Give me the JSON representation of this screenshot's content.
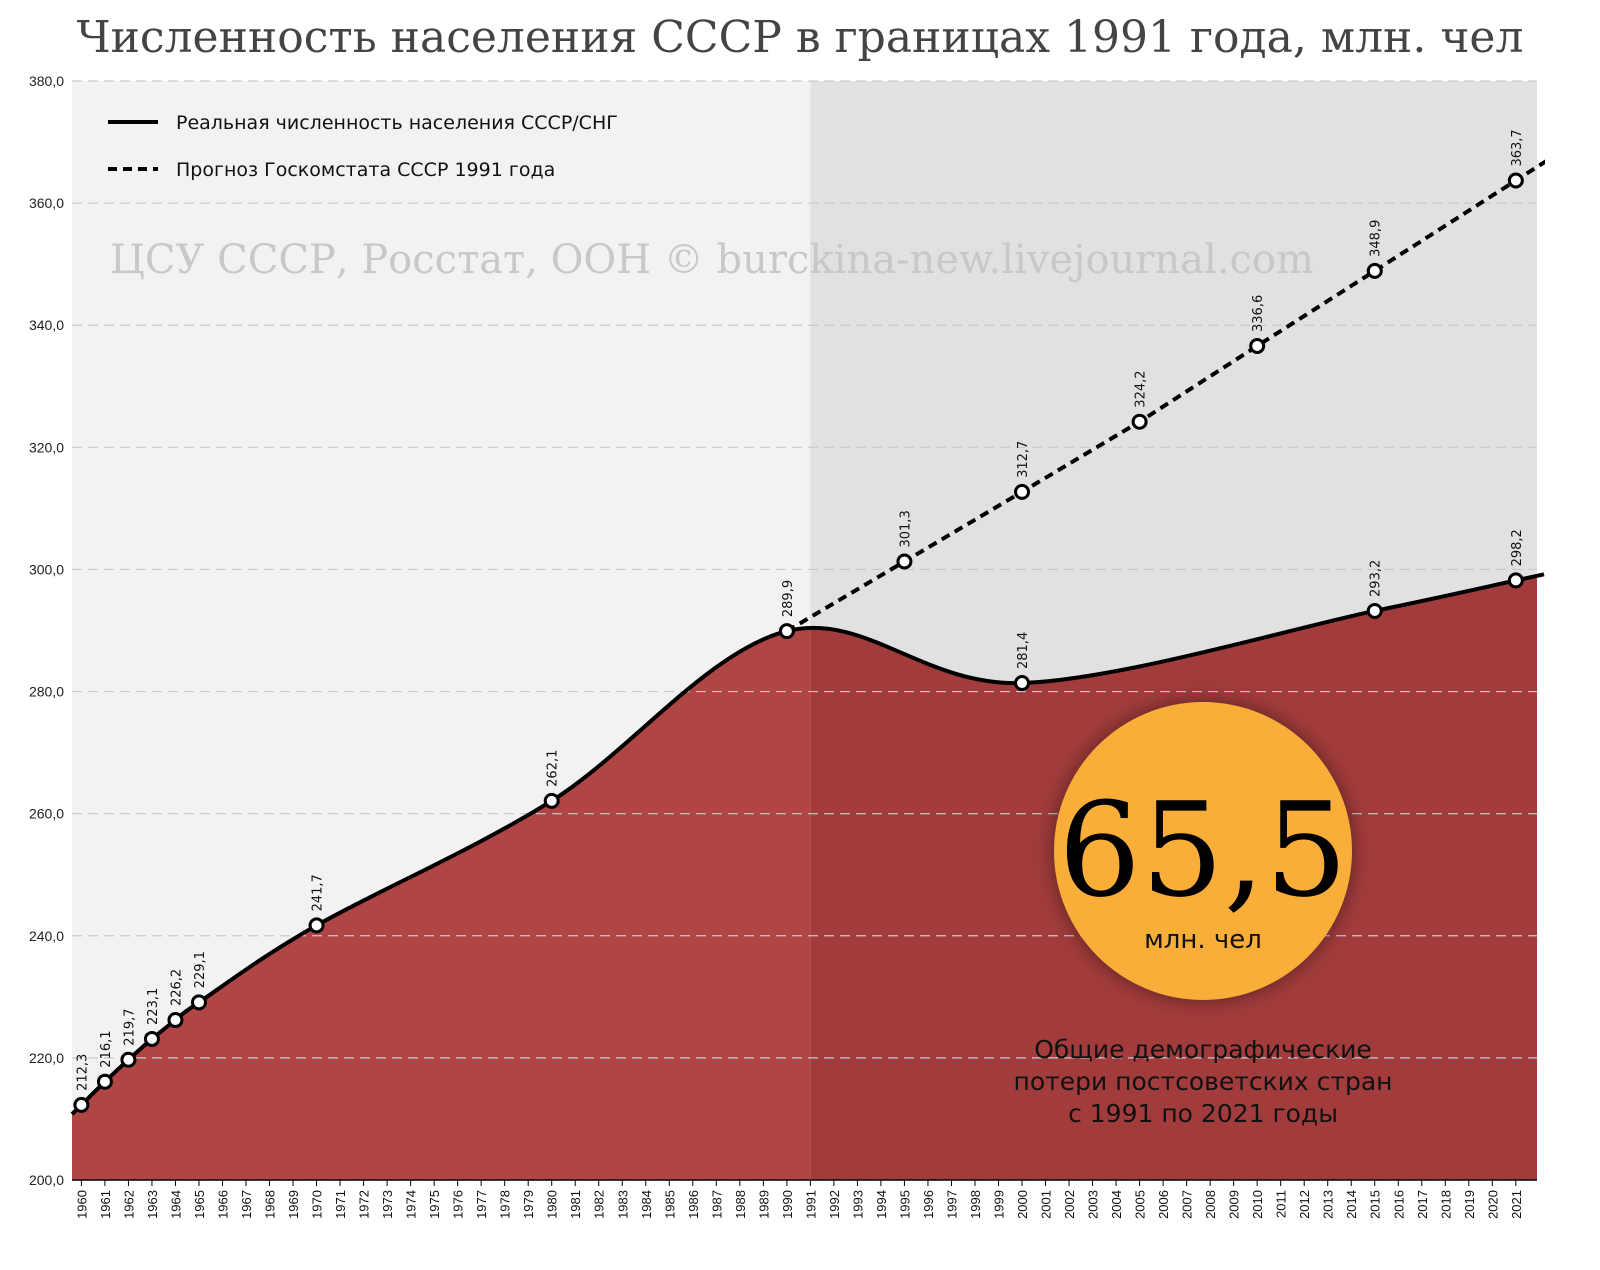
{
  "title": "Численность населения СССР в границах 1991 года, млн. чел",
  "watermark": "ЦСУ СССР, Росстат, ООН © burckina-new.livejournal.com",
  "callout": {
    "value": "65,5",
    "unit": "млн. чел",
    "caption_lines": [
      "Общие демографические",
      "потери постсоветских стран",
      "с 1991 по 2021 годы"
    ],
    "circle_color": "#F9AE3A"
  },
  "colors": {
    "background": "#f2f2f2",
    "shaded_region": "#e1e1e1",
    "area_fill": "#B04545",
    "area_fill_shaded": "#A23C3C",
    "line": "#000000"
  },
  "chart_data": {
    "type": "line",
    "ylim": [
      200,
      380
    ],
    "xlim": [
      1959.6,
      2021.9
    ],
    "shaded_from": 1991,
    "yticks": [
      "200,0",
      "220,0",
      "240,0",
      "260,0",
      "280,0",
      "300,0",
      "320,0",
      "340,0",
      "360,0",
      "380,0"
    ],
    "x_ticks": [
      "1960",
      "1961",
      "1962",
      "1963",
      "1964",
      "1965",
      "1966",
      "1967",
      "1968",
      "1969",
      "1970",
      "1971",
      "1972",
      "1973",
      "1974",
      "1975",
      "1976",
      "1977",
      "1978",
      "1979",
      "1980",
      "1981",
      "1982",
      "1983",
      "1984",
      "1985",
      "1986",
      "1987",
      "1988",
      "1989",
      "1990",
      "1991",
      "1992",
      "1993",
      "1994",
      "1995",
      "1996",
      "1997",
      "1998",
      "1999",
      "2000",
      "2001",
      "2002",
      "2003",
      "2004",
      "2005",
      "2006",
      "2007",
      "2008",
      "2009",
      "2010",
      "2011",
      "2012",
      "2013",
      "2014",
      "2015",
      "2016",
      "2017",
      "2018",
      "2019",
      "2020",
      "2021"
    ],
    "grid": true,
    "legend_position": "top-left",
    "series": [
      {
        "name": "Реальная численность населения СССР/СНГ",
        "style": "solid",
        "points": [
          {
            "x": 1960,
            "y": 212.3,
            "label": "212,3"
          },
          {
            "x": 1961,
            "y": 216.1,
            "label": "216,1"
          },
          {
            "x": 1962,
            "y": 219.7,
            "label": "219,7"
          },
          {
            "x": 1963,
            "y": 223.1,
            "label": "223,1"
          },
          {
            "x": 1964,
            "y": 226.2,
            "label": "226,2"
          },
          {
            "x": 1965,
            "y": 229.1,
            "label": "229,1"
          },
          {
            "x": 1970,
            "y": 241.7,
            "label": "241,7"
          },
          {
            "x": 1980,
            "y": 262.1,
            "label": "262,1"
          },
          {
            "x": 1990,
            "y": 289.9,
            "label": "289,9"
          },
          {
            "x": 2000,
            "y": 281.4,
            "label": "281,4"
          },
          {
            "x": 2015,
            "y": 293.2,
            "label": "293,2"
          },
          {
            "x": 2021,
            "y": 298.2,
            "label": "298,2"
          }
        ]
      },
      {
        "name": "Прогноз Госкомстата СССР 1991 года",
        "style": "dashed",
        "points": [
          {
            "x": 1990,
            "y": 289.9,
            "label": ""
          },
          {
            "x": 1995,
            "y": 301.3,
            "label": "301,3"
          },
          {
            "x": 2000,
            "y": 312.7,
            "label": "312,7"
          },
          {
            "x": 2005,
            "y": 324.2,
            "label": "324,2"
          },
          {
            "x": 2010,
            "y": 336.6,
            "label": "336,6"
          },
          {
            "x": 2015,
            "y": 348.9,
            "label": "348,9"
          },
          {
            "x": 2021,
            "y": 363.7,
            "label": "363,7"
          }
        ]
      }
    ]
  }
}
